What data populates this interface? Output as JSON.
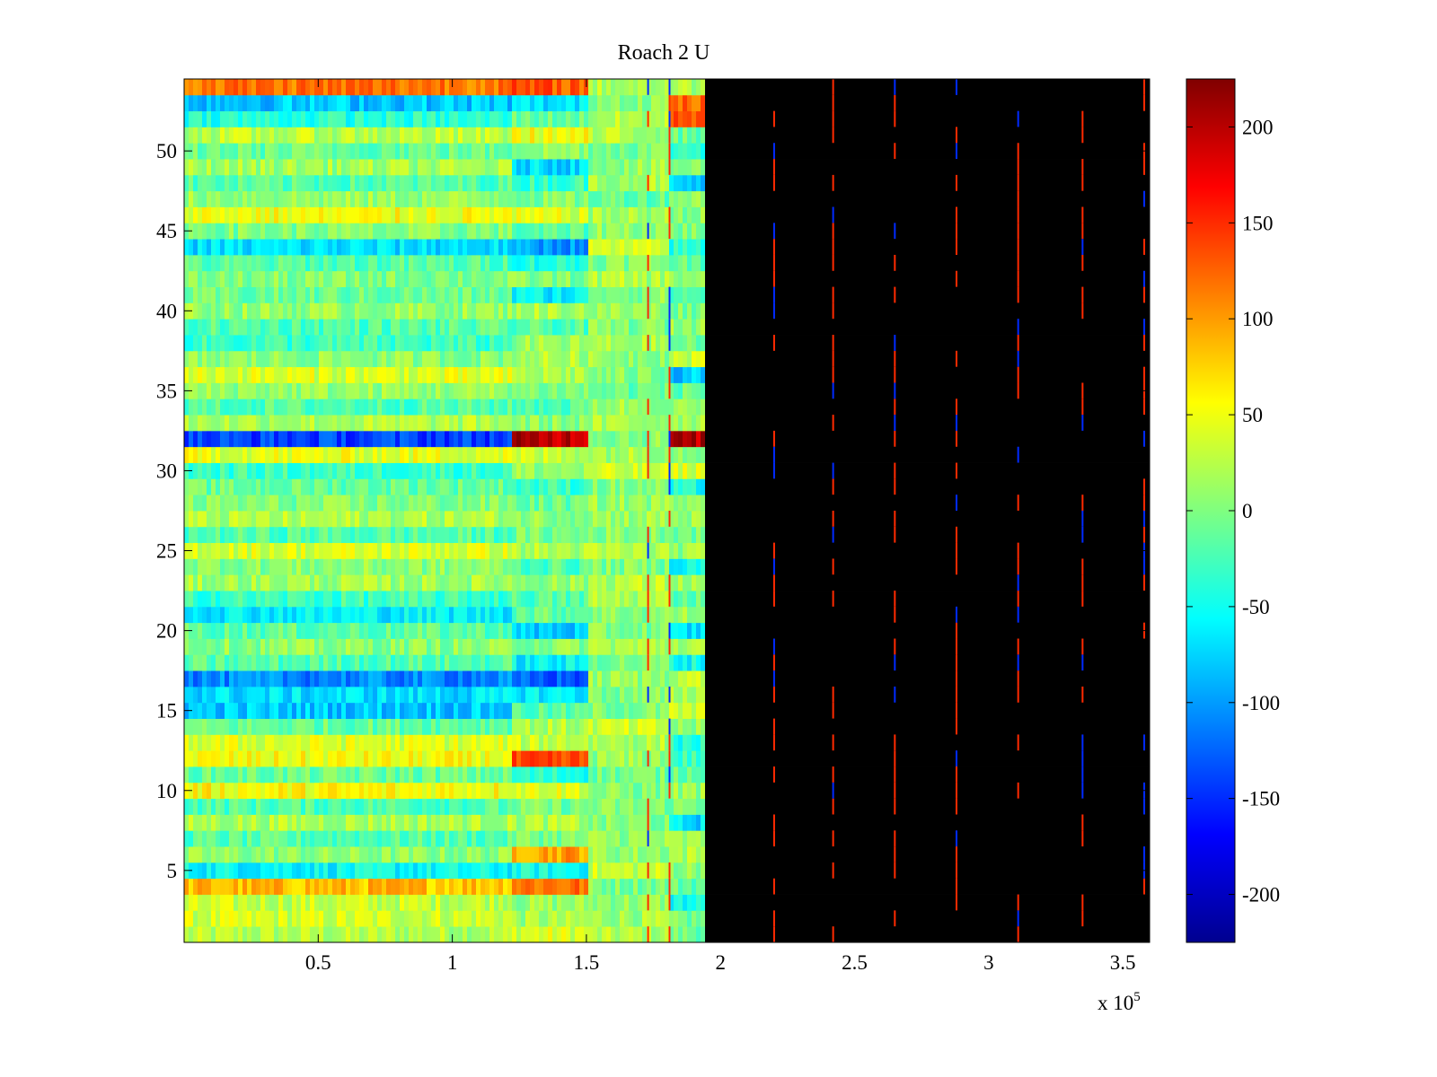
{
  "chart_data": {
    "type": "heatmap",
    "title": "Roach 2 U",
    "xlabel": "",
    "ylabel": "",
    "x_multiplier_label": "x 10",
    "x_multiplier_exponent": "5",
    "xlim": [
      0,
      3.6
    ],
    "ylim": [
      0.5,
      54.5
    ],
    "x_ticks": [
      0.5,
      1,
      1.5,
      2,
      2.5,
      3,
      3.5
    ],
    "x_tick_labels": [
      "0.5",
      "1",
      "1.5",
      "2",
      "2.5",
      "3",
      "3.5"
    ],
    "y_ticks": [
      5,
      10,
      15,
      20,
      25,
      30,
      35,
      40,
      45,
      50
    ],
    "y_tick_labels": [
      "5",
      "10",
      "15",
      "20",
      "25",
      "30",
      "35",
      "40",
      "45",
      "50"
    ],
    "rows": 54,
    "colormap": "jet",
    "clim": [
      -225,
      225
    ],
    "colorbar_ticks": [
      -200,
      -150,
      -100,
      -50,
      0,
      50,
      100,
      150,
      200
    ],
    "colorbar_tick_labels": [
      "-200",
      "-150",
      "-100",
      "-50",
      "0",
      "50",
      "100",
      "150",
      "200"
    ],
    "segment_breaks_x": [
      1.23,
      1.5,
      1.81,
      1.95
    ],
    "row_means_by_segment": [
      [
        22,
        40,
        20,
        -5
      ],
      [
        35,
        15,
        15,
        -8
      ],
      [
        30,
        10,
        10,
        -50
      ],
      [
        85,
        120,
        0,
        -10
      ],
      [
        -55,
        -50,
        30,
        10
      ],
      [
        5,
        100,
        10,
        20
      ],
      [
        -20,
        0,
        10,
        10
      ],
      [
        20,
        20,
        0,
        -70
      ],
      [
        -20,
        -5,
        0,
        0
      ],
      [
        55,
        45,
        0,
        10
      ],
      [
        -10,
        -40,
        -5,
        -5
      ],
      [
        50,
        130,
        10,
        -30
      ],
      [
        40,
        30,
        20,
        -40
      ],
      [
        -10,
        20,
        30,
        5
      ],
      [
        -80,
        -20,
        0,
        30
      ],
      [
        -70,
        -60,
        0,
        20
      ],
      [
        -110,
        -130,
        10,
        30
      ],
      [
        -20,
        -60,
        0,
        -50
      ],
      [
        5,
        5,
        20,
        20
      ],
      [
        -15,
        -80,
        0,
        -70
      ],
      [
        -60,
        -10,
        5,
        10
      ],
      [
        -30,
        -20,
        20,
        -10
      ],
      [
        15,
        10,
        25,
        15
      ],
      [
        5,
        -20,
        0,
        -50
      ],
      [
        40,
        20,
        20,
        10
      ],
      [
        -20,
        -5,
        5,
        0
      ],
      [
        20,
        10,
        15,
        10
      ],
      [
        0,
        -10,
        10,
        20
      ],
      [
        -10,
        -30,
        0,
        -50
      ],
      [
        -30,
        10,
        30,
        40
      ],
      [
        45,
        30,
        20,
        10
      ],
      [
        -140,
        200,
        5,
        200
      ],
      [
        20,
        5,
        15,
        20
      ],
      [
        -20,
        -20,
        15,
        5
      ],
      [
        10,
        0,
        -10,
        -10
      ],
      [
        40,
        20,
        0,
        -80
      ],
      [
        5,
        20,
        10,
        30
      ],
      [
        -30,
        10,
        15,
        -10
      ],
      [
        -20,
        -20,
        0,
        10
      ],
      [
        10,
        20,
        10,
        0
      ],
      [
        -10,
        -60,
        5,
        -20
      ],
      [
        0,
        0,
        20,
        10
      ],
      [
        -20,
        -40,
        5,
        -10
      ],
      [
        -70,
        -100,
        30,
        -40
      ],
      [
        0,
        -20,
        10,
        0
      ],
      [
        50,
        40,
        15,
        5
      ],
      [
        10,
        0,
        -10,
        10
      ],
      [
        -20,
        -30,
        20,
        -80
      ],
      [
        15,
        -70,
        10,
        0
      ],
      [
        -10,
        10,
        0,
        -30
      ],
      [
        25,
        50,
        20,
        -10
      ],
      [
        -40,
        -10,
        20,
        140
      ],
      [
        -80,
        -70,
        10,
        120
      ],
      [
        120,
        130,
        20,
        20
      ]
    ],
    "spike_columns_x": [
      1.73,
      1.81,
      2.2,
      2.42,
      2.65,
      2.88,
      3.11,
      3.35,
      3.58
    ]
  }
}
